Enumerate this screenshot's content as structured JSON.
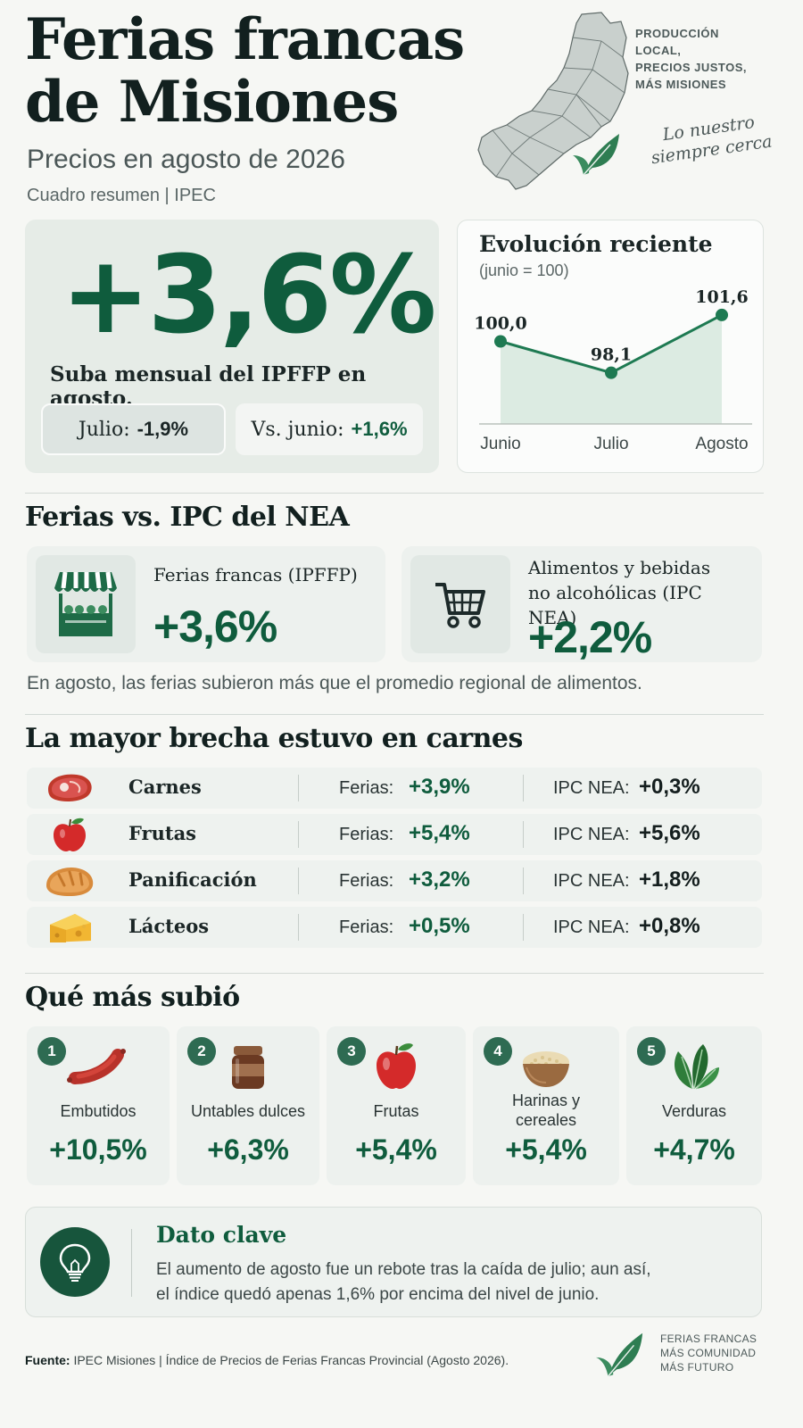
{
  "header": {
    "title_line1": "Ferias francas",
    "title_line2": "de Misiones",
    "subtitle": "Precios en agosto de 2026",
    "source": "Cuadro resumen | IPEC",
    "tagline": [
      "PRODUCCIÓN",
      "LOCAL,",
      "PRECIOS JUSTOS,",
      "MÁS MISIONES"
    ],
    "script_line1": "Lo nuestro",
    "script_line2": "siempre cerca"
  },
  "hero": {
    "value": "+3,6%",
    "label": "Suba mensual del IPFFP en agosto.",
    "pill1_label": "Julio:",
    "pill1_value": "-1,9%",
    "pill2_label": "Vs. junio:",
    "pill2_value": "+1,6%"
  },
  "evolution": {
    "title": "Evolución reciente",
    "subtitle": "(junio = 100)"
  },
  "chart_data": {
    "type": "area",
    "title": "Evolución reciente",
    "subtitle": "(junio = 100)",
    "categories": [
      "Junio",
      "Julio",
      "Agosto"
    ],
    "values": [
      100.0,
      98.1,
      101.6
    ],
    "value_labels": [
      "100,0",
      "98,1",
      "101,6"
    ],
    "ylim": [
      95,
      103
    ],
    "grid": false,
    "color": "#1e7a52"
  },
  "comparison": {
    "heading": "Ferias vs. IPC del NEA",
    "card1_label": "Ferias francas (IPFFP)",
    "card1_value": "+3,6%",
    "card1_icon": "market-stall-icon",
    "card2_label_line1": "Alimentos y bebidas",
    "card2_label_line2": "no alcohólicas (IPC NEA)",
    "card2_value": "+2,2%",
    "card2_icon": "shopping-cart-icon",
    "note": "En agosto, las ferias subieron más que el promedio regional de alimentos."
  },
  "categories": {
    "heading": "La mayor brecha estuvo en carnes",
    "ferias_label": "Ferias:",
    "ipc_label": "IPC NEA:",
    "rows": [
      {
        "name": "Carnes",
        "ferias": "+3,9%",
        "ipc": "+0,3%",
        "icon": "meat-icon"
      },
      {
        "name": "Frutas",
        "ferias": "+5,4%",
        "ipc": "+5,6%",
        "icon": "apple-icon"
      },
      {
        "name": "Panificación",
        "ferias": "+3,2%",
        "ipc": "+1,8%",
        "icon": "bread-icon"
      },
      {
        "name": "Lácteos",
        "ferias": "+0,5%",
        "ipc": "+0,8%",
        "icon": "cheese-icon"
      }
    ]
  },
  "top": {
    "heading": "Qué más subió",
    "items": [
      {
        "rank": "1",
        "name": "Embutidos",
        "value": "+10,5%",
        "icon": "sausage-icon"
      },
      {
        "rank": "2",
        "name": "Untables dulces",
        "value": "+6,3%",
        "icon": "jar-icon"
      },
      {
        "rank": "3",
        "name": "Frutas",
        "value": "+5,4%",
        "icon": "apple-icon"
      },
      {
        "rank": "4",
        "name_line1": "Harinas y",
        "name_line2": "cereales",
        "value": "+5,4%",
        "icon": "grain-bowl-icon"
      },
      {
        "rank": "5",
        "name": "Verduras",
        "value": "+4,7%",
        "icon": "leafy-greens-icon"
      }
    ]
  },
  "key_fact": {
    "title": "Dato clave",
    "line1": "El aumento de agosto fue un rebote tras la caída de julio; aun así,",
    "line2": "el índice quedó apenas 1,6% por encima del nivel de junio.",
    "icon": "lightbulb-icon"
  },
  "footer": {
    "source_label": "Fuente:",
    "source_text": "IPEC Misiones | Índice de Precios de Ferias Francas Provincial (Agosto 2026).",
    "brand": [
      "FERIAS FRANCAS",
      "MÁS COMUNIDAD",
      "MÁS FUTURO"
    ]
  },
  "colors": {
    "accent": "#0f5c3d",
    "background": "#f6f7f4",
    "card": "#edf1ee"
  }
}
